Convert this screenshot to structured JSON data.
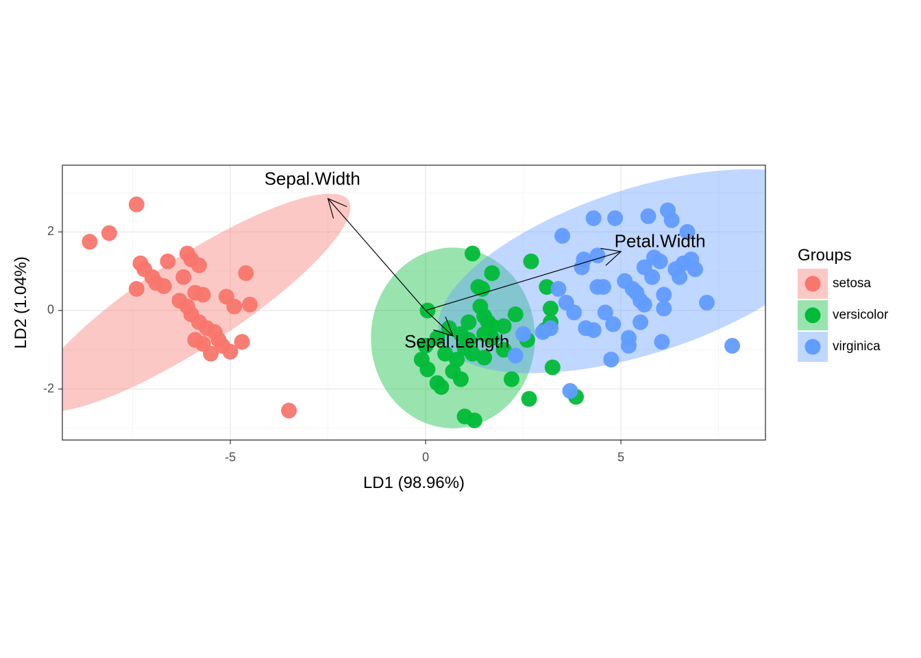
{
  "chart_data": {
    "type": "scatter",
    "xlabel": "LD1 (98.96%)",
    "ylabel": "LD2 (1.04%)",
    "xlim": [
      -9.3,
      8.7
    ],
    "ylim": [
      -3.3,
      3.7
    ],
    "x_ticks": [
      -5,
      0,
      5
    ],
    "x_tick_labels": [
      "-5",
      "0",
      "5"
    ],
    "y_ticks": [
      -2,
      0,
      2
    ],
    "y_tick_labels": [
      "-2",
      "0",
      "2"
    ],
    "grid": true,
    "legend": {
      "title": "Groups",
      "position": "right"
    },
    "series": [
      {
        "name": "setosa",
        "color": "#F8766D",
        "ellipse": {
          "cx": -6.0,
          "cy": 0.2,
          "rx": 4.8,
          "ry": 1.15,
          "angle_deg": -33
        },
        "points": [
          [
            -8.6,
            1.75
          ],
          [
            -8.1,
            1.97
          ],
          [
            -7.4,
            2.7
          ],
          [
            -7.3,
            1.2
          ],
          [
            -7.2,
            1.05
          ],
          [
            -7.4,
            0.55
          ],
          [
            -7.0,
            0.85
          ],
          [
            -6.9,
            0.7
          ],
          [
            -6.7,
            0.62
          ],
          [
            -6.6,
            1.25
          ],
          [
            -6.3,
            0.25
          ],
          [
            -6.2,
            0.85
          ],
          [
            -6.1,
            1.45
          ],
          [
            -6.0,
            1.3
          ],
          [
            -6.1,
            0.1
          ],
          [
            -5.9,
            0.45
          ],
          [
            -6.0,
            -0.1
          ],
          [
            -5.8,
            -0.3
          ],
          [
            -5.7,
            0.4
          ],
          [
            -5.8,
            1.15
          ],
          [
            -5.9,
            -0.75
          ],
          [
            -5.7,
            -0.85
          ],
          [
            -5.6,
            -0.45
          ],
          [
            -5.5,
            -1.1
          ],
          [
            -5.4,
            -0.55
          ],
          [
            -5.3,
            -0.75
          ],
          [
            -5.2,
            -0.9
          ],
          [
            -5.0,
            -1.05
          ],
          [
            -5.1,
            0.35
          ],
          [
            -4.9,
            0.1
          ],
          [
            -4.7,
            -0.8
          ],
          [
            -4.6,
            0.95
          ],
          [
            -4.5,
            0.15
          ],
          [
            -3.5,
            -2.55
          ]
        ]
      },
      {
        "name": "versicolor",
        "color": "#00BA38",
        "ellipse": {
          "cx": 0.7,
          "cy": -0.7,
          "rx": 2.1,
          "ry": 2.3,
          "angle_deg": 0
        },
        "points": [
          [
            0.05,
            0.0
          ],
          [
            0.0,
            -0.9
          ],
          [
            -0.1,
            -1.25
          ],
          [
            0.05,
            -1.5
          ],
          [
            0.3,
            -1.85
          ],
          [
            0.4,
            -1.95
          ],
          [
            0.3,
            -0.7
          ],
          [
            0.5,
            -1.1
          ],
          [
            0.6,
            -0.45
          ],
          [
            0.8,
            -1.25
          ],
          [
            0.7,
            -1.55
          ],
          [
            0.9,
            -1.75
          ],
          [
            0.9,
            -0.6
          ],
          [
            1.0,
            -0.95
          ],
          [
            1.1,
            -0.75
          ],
          [
            1.1,
            -0.3
          ],
          [
            1.2,
            -1.1
          ],
          [
            1.2,
            1.45
          ],
          [
            1.0,
            -2.7
          ],
          [
            1.25,
            -2.8
          ],
          [
            1.35,
            0.6
          ],
          [
            1.4,
            0.1
          ],
          [
            1.45,
            0.55
          ],
          [
            1.5,
            -0.15
          ],
          [
            1.6,
            -0.3
          ],
          [
            1.5,
            -0.6
          ],
          [
            1.7,
            -0.4
          ],
          [
            1.7,
            -0.7
          ],
          [
            1.7,
            0.95
          ],
          [
            1.5,
            -1.2
          ],
          [
            2.0,
            -1.0
          ],
          [
            2.2,
            -1.75
          ],
          [
            2.0,
            -0.4
          ],
          [
            2.6,
            -0.75
          ],
          [
            2.65,
            -2.25
          ],
          [
            2.7,
            1.25
          ],
          [
            3.05,
            -0.5
          ],
          [
            3.2,
            0.05
          ],
          [
            3.25,
            -1.45
          ],
          [
            3.2,
            -0.3
          ],
          [
            3.1,
            0.6
          ],
          [
            2.3,
            -0.1
          ],
          [
            3.85,
            -2.2
          ]
        ]
      },
      {
        "name": "virginica",
        "color": "#619CFF",
        "ellipse": {
          "cx": 5.5,
          "cy": 1.0,
          "rx": 5.4,
          "ry": 2.1,
          "angle_deg": -18
        },
        "points": [
          [
            2.3,
            -1.15
          ],
          [
            2.5,
            -0.6
          ],
          [
            3.0,
            -0.55
          ],
          [
            3.2,
            -0.45
          ],
          [
            3.4,
            0.55
          ],
          [
            3.5,
            1.9
          ],
          [
            3.6,
            0.2
          ],
          [
            3.8,
            -0.05
          ],
          [
            4.0,
            1.1
          ],
          [
            4.05,
            1.3
          ],
          [
            4.1,
            -0.45
          ],
          [
            4.3,
            -0.5
          ],
          [
            4.3,
            2.35
          ],
          [
            4.4,
            1.4
          ],
          [
            4.4,
            0.6
          ],
          [
            4.55,
            0.6
          ],
          [
            4.6,
            -0.05
          ],
          [
            4.8,
            -0.35
          ],
          [
            4.75,
            -1.25
          ],
          [
            4.85,
            2.35
          ],
          [
            5.1,
            0.75
          ],
          [
            5.2,
            -0.7
          ],
          [
            5.2,
            -0.9
          ],
          [
            5.3,
            0.55
          ],
          [
            5.4,
            0.45
          ],
          [
            5.5,
            -0.3
          ],
          [
            5.5,
            0.25
          ],
          [
            5.6,
            1.1
          ],
          [
            5.7,
            2.4
          ],
          [
            5.6,
            0.15
          ],
          [
            5.8,
            0.85
          ],
          [
            5.85,
            1.35
          ],
          [
            6.0,
            1.25
          ],
          [
            6.05,
            -0.8
          ],
          [
            6.1,
            0.05
          ],
          [
            6.1,
            0.4
          ],
          [
            6.2,
            2.55
          ],
          [
            6.3,
            2.3
          ],
          [
            6.4,
            1.05
          ],
          [
            6.5,
            0.85
          ],
          [
            6.6,
            1.2
          ],
          [
            6.7,
            2.0
          ],
          [
            6.8,
            1.3
          ],
          [
            6.9,
            1.05
          ],
          [
            7.2,
            0.2
          ],
          [
            7.85,
            -0.9
          ],
          [
            3.7,
            -2.05
          ]
        ]
      }
    ],
    "arrows": [
      {
        "label": "Sepal.Width",
        "from": [
          0.0,
          0.0
        ],
        "to": [
          -2.5,
          2.85
        ],
        "label_at": [
          -2.9,
          3.32
        ]
      },
      {
        "label": "Petal.Width",
        "from": [
          0.0,
          0.0
        ],
        "to": [
          5.0,
          1.5
        ],
        "label_at": [
          6.0,
          1.73
        ]
      },
      {
        "label": "Sepal.Length",
        "from": [
          0.0,
          0.0
        ],
        "to": [
          0.7,
          -0.65
        ],
        "label_at": [
          0.8,
          -0.82
        ]
      }
    ]
  }
}
